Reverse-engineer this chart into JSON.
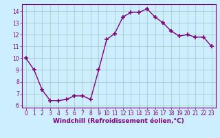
{
  "x": [
    0,
    1,
    2,
    3,
    4,
    5,
    6,
    7,
    8,
    9,
    10,
    11,
    12,
    13,
    14,
    15,
    16,
    17,
    18,
    19,
    20,
    21,
    22,
    23
  ],
  "y": [
    10.0,
    9.0,
    7.3,
    6.4,
    6.4,
    6.5,
    6.8,
    6.8,
    6.5,
    9.0,
    11.6,
    12.1,
    13.5,
    13.9,
    13.9,
    14.2,
    13.5,
    13.0,
    12.3,
    11.9,
    12.0,
    11.8,
    11.8,
    11.0
  ],
  "line_color": "#800080",
  "marker": "+",
  "marker_size": 4,
  "bg_color": "#cceeff",
  "grid_color": "#aacccc",
  "xlabel": "Windchill (Refroidissement éolien,°C)",
  "ylim": [
    5.8,
    14.6
  ],
  "xlim": [
    -0.5,
    23.5
  ],
  "yticks": [
    6,
    7,
    8,
    9,
    10,
    11,
    12,
    13,
    14
  ],
  "xticks": [
    0,
    1,
    2,
    3,
    4,
    5,
    6,
    7,
    8,
    9,
    10,
    11,
    12,
    13,
    14,
    15,
    16,
    17,
    18,
    19,
    20,
    21,
    22,
    23
  ],
  "tick_fontsize": 5.5,
  "xlabel_fontsize": 6.5,
  "line_width": 1.0
}
